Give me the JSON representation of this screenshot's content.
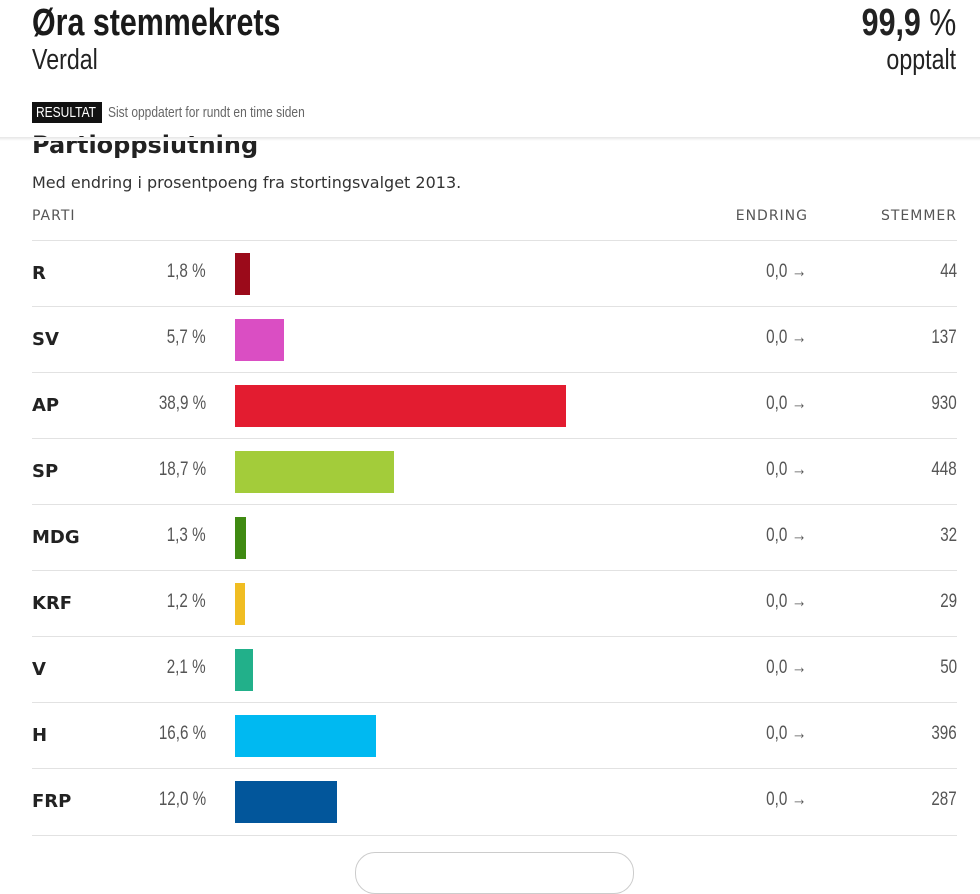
{
  "header": {
    "title": "Øra stemmekrets",
    "municipality": "Verdal",
    "counted_value": "99,9",
    "counted_unit": "%",
    "counted_label": "opptalt",
    "badge": "RESULTAT",
    "updated": "Sist oppdatert for rundt en time siden"
  },
  "section": {
    "title": "Partioppslutning",
    "description": "Med endring i prosentpoeng fra stortingsvalget 2013."
  },
  "chart_data": {
    "type": "bar",
    "columns": [
      "PARTI",
      "ENDRING",
      "STEMMER"
    ],
    "xlim": [
      0,
      100
    ],
    "rows": [
      {
        "party": "R",
        "share": 1.8,
        "share_label": "1,8 %",
        "change": "0,0 →",
        "votes": "44",
        "color": "#9b0a1a"
      },
      {
        "party": "SV",
        "share": 5.7,
        "share_label": "5,7 %",
        "change": "0,0 →",
        "votes": "137",
        "color": "#da4ec3"
      },
      {
        "party": "AP",
        "share": 38.9,
        "share_label": "38,9 %",
        "change": "0,0 →",
        "votes": "930",
        "color": "#e31c30"
      },
      {
        "party": "SP",
        "share": 18.7,
        "share_label": "18,7 %",
        "change": "0,0 →",
        "votes": "448",
        "color": "#a3cc3a"
      },
      {
        "party": "MDG",
        "share": 1.3,
        "share_label": "1,3 %",
        "change": "0,0 →",
        "votes": "32",
        "color": "#3f8a12"
      },
      {
        "party": "KRF",
        "share": 1.2,
        "share_label": "1,2 %",
        "change": "0,0 →",
        "votes": "29",
        "color": "#f0bd22"
      },
      {
        "party": "V",
        "share": 2.1,
        "share_label": "2,1 %",
        "change": "0,0 →",
        "votes": "50",
        "color": "#22b08a"
      },
      {
        "party": "H",
        "share": 16.6,
        "share_label": "16,6 %",
        "change": "0,0 →",
        "votes": "396",
        "color": "#00b9f1"
      },
      {
        "party": "FRP",
        "share": 12.0,
        "share_label": "12,0 %",
        "change": "0,0 →",
        "votes": "287",
        "color": "#02569b"
      }
    ]
  }
}
